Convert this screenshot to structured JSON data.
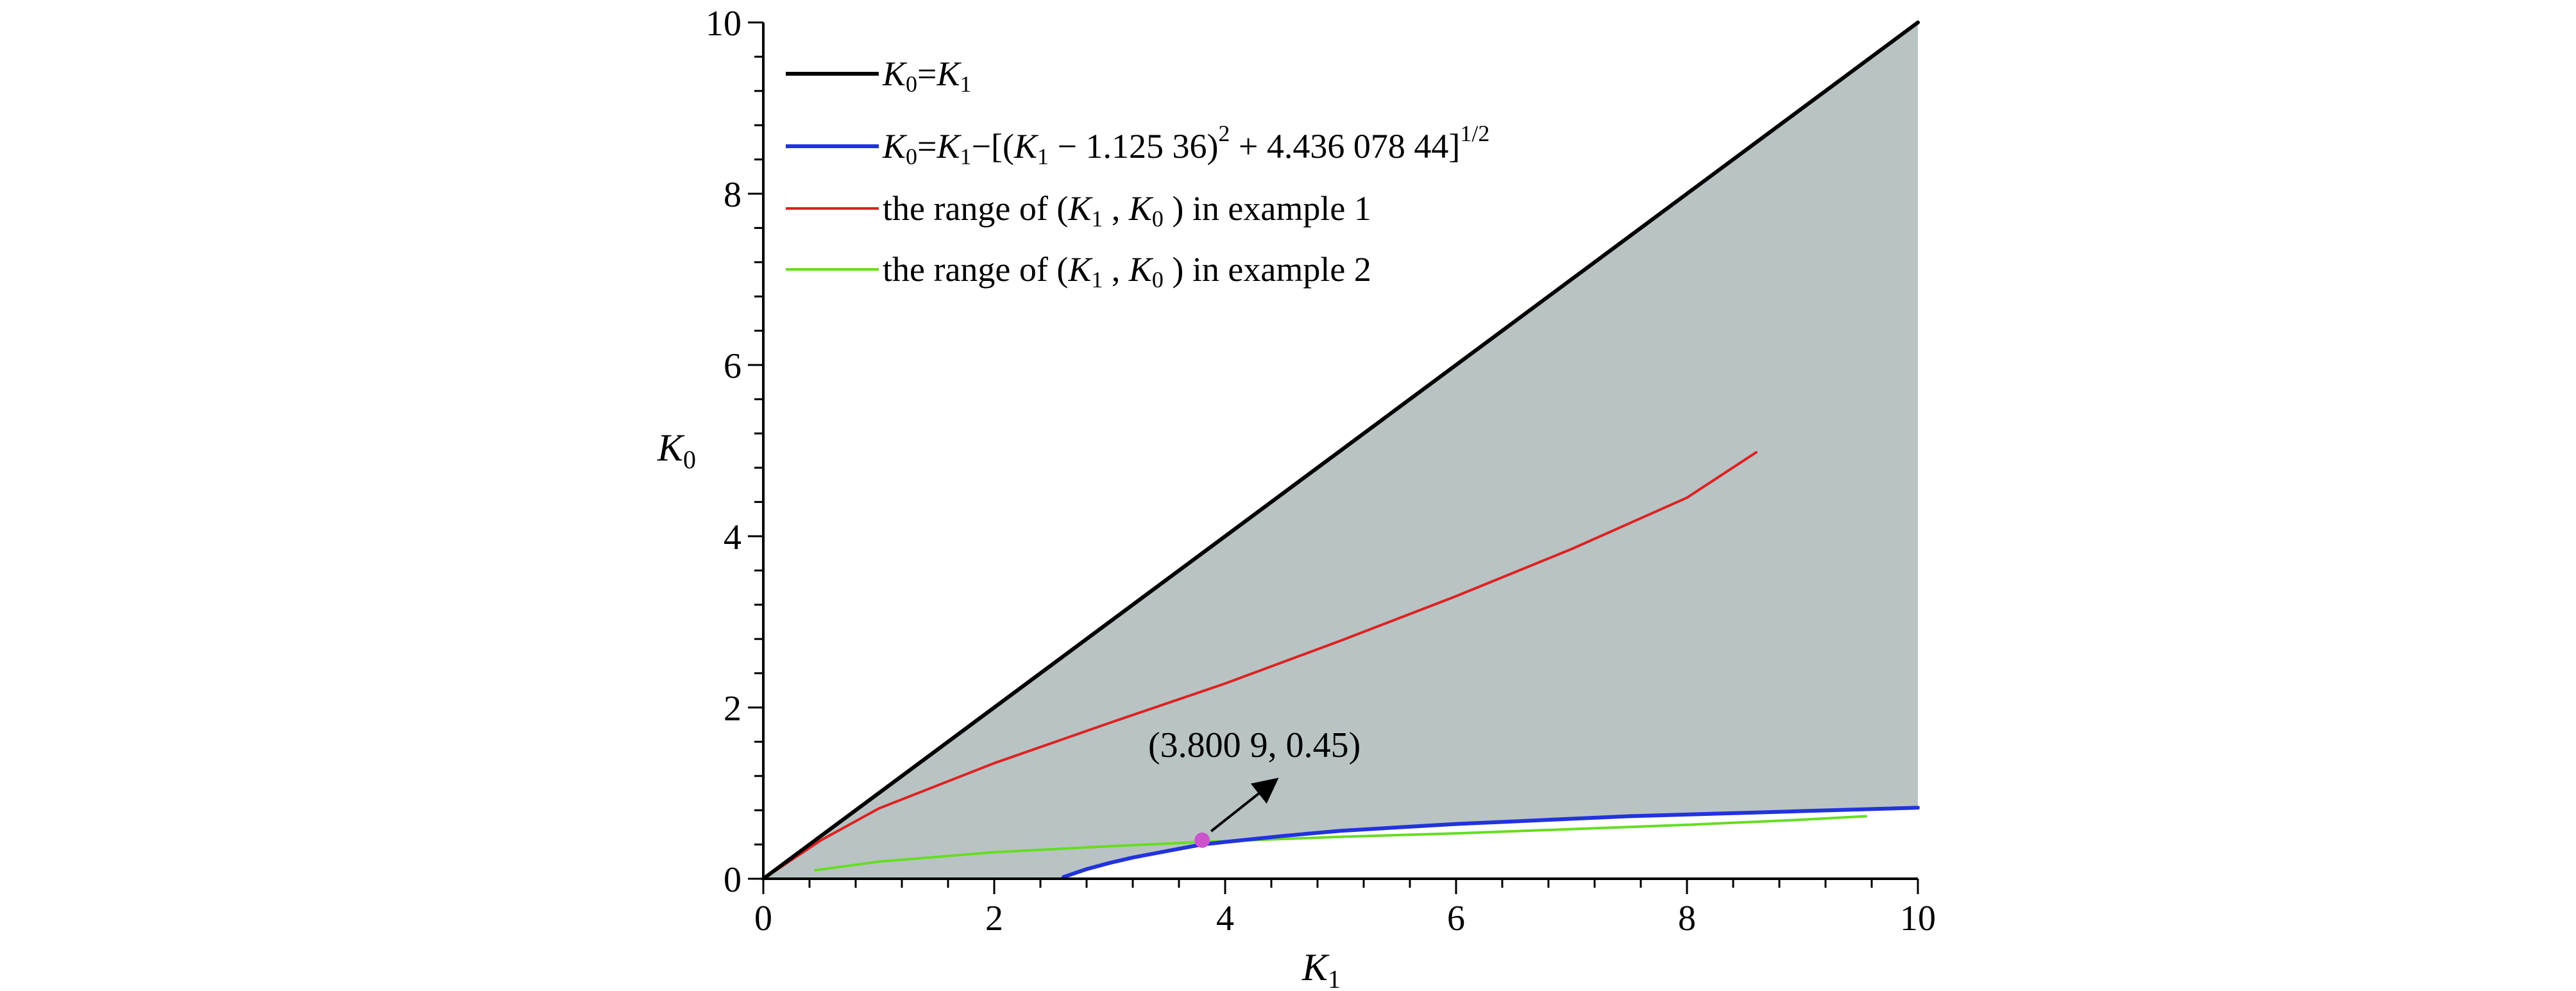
{
  "chart_data": {
    "type": "line",
    "xlabel": "K",
    "xlabel_sub": "1",
    "ylabel": "K",
    "ylabel_sub": "0",
    "xlim": [
      0,
      10
    ],
    "ylim": [
      0,
      10
    ],
    "x_major_ticks": [
      0,
      2,
      4,
      6,
      8,
      10
    ],
    "y_major_ticks": [
      0,
      2,
      4,
      6,
      8,
      10
    ],
    "x_tick_labels": [
      "0",
      "2",
      "4",
      "6",
      "8",
      "10"
    ],
    "y_tick_labels": [
      "0",
      "2",
      "4",
      "6",
      "8",
      "10"
    ],
    "minor_tick_step": 0.4,
    "grid": false,
    "legend_position": "top-left",
    "shaded_region": {
      "color": "#b9c3c4",
      "description_bounds": [
        "upper: K0 = K1",
        "lower: blue boundary curve (or 0)"
      ]
    },
    "legend": [
      {
        "series_ref": "k0_eq_k1",
        "color": "#000000",
        "parts": [
          {
            "t": "K",
            "i": true
          },
          {
            "t": "0",
            "sub": true
          },
          {
            "t": "=",
            "i": false
          },
          {
            "t": "K",
            "i": true
          },
          {
            "t": "1",
            "sub": true
          }
        ]
      },
      {
        "series_ref": "boundary",
        "color": "#2233dd",
        "parts": [
          {
            "t": "K",
            "i": true
          },
          {
            "t": "0",
            "sub": true
          },
          {
            "t": "=",
            "i": false
          },
          {
            "t": "K",
            "i": true
          },
          {
            "t": "1",
            "sub": true
          },
          {
            "t": "−[(",
            "i": false
          },
          {
            "t": "K",
            "i": true
          },
          {
            "t": "1",
            "sub": true
          },
          {
            "t": " − 1.125 36)",
            "i": false
          },
          {
            "t": "2",
            "sup": true
          },
          {
            "t": " + 4.436 078 44]",
            "i": false
          },
          {
            "t": "1/2",
            "sup": true
          }
        ]
      },
      {
        "series_ref": "example1",
        "color": "#dd2222",
        "parts": [
          {
            "t": "the range of (",
            "i": false
          },
          {
            "t": "K",
            "i": true
          },
          {
            "t": "1",
            "sub": true
          },
          {
            "t": " , ",
            "i": false
          },
          {
            "t": "K",
            "i": true
          },
          {
            "t": "0",
            "sub": true
          },
          {
            "t": " ) in example 1",
            "i": false
          }
        ]
      },
      {
        "series_ref": "example2",
        "color": "#66dd22",
        "parts": [
          {
            "t": "the range of (",
            "i": false
          },
          {
            "t": "K",
            "i": true
          },
          {
            "t": "1",
            "sub": true
          },
          {
            "t": " , ",
            "i": false
          },
          {
            "t": "K",
            "i": true
          },
          {
            "t": "0",
            "sub": true
          },
          {
            "t": " ) in example 2",
            "i": false
          }
        ]
      }
    ],
    "series": [
      {
        "id": "k0_eq_k1",
        "color": "#000000",
        "x": [
          0,
          10
        ],
        "y": [
          0,
          10
        ]
      },
      {
        "id": "boundary",
        "color": "#2233dd",
        "x": [
          2.6,
          2.8,
          3.0,
          3.2,
          3.5,
          3.8,
          4.0,
          4.5,
          5.0,
          5.5,
          6.0,
          6.5,
          7.0,
          7.5,
          8.0,
          8.5,
          9.0,
          9.5,
          10.0
        ],
        "y": [
          0.02,
          0.112,
          0.185,
          0.248,
          0.324,
          0.4,
          0.43,
          0.5,
          0.56,
          0.6,
          0.64,
          0.67,
          0.7,
          0.73,
          0.75,
          0.77,
          0.79,
          0.81,
          0.83
        ]
      },
      {
        "id": "example1",
        "color": "#dd2222",
        "x": [
          0,
          0.5,
          1,
          2,
          3,
          4,
          5,
          6,
          7,
          8,
          8.6
        ],
        "y": [
          0,
          0.45,
          0.82,
          1.35,
          1.82,
          2.28,
          2.78,
          3.3,
          3.85,
          4.45,
          4.98
        ]
      },
      {
        "id": "example2",
        "color": "#66dd22",
        "x": [
          0.45,
          1,
          2,
          3,
          3.8,
          5,
          6,
          7,
          8,
          9,
          9.55
        ],
        "y": [
          0.1,
          0.2,
          0.31,
          0.38,
          0.43,
          0.49,
          0.53,
          0.58,
          0.63,
          0.69,
          0.73
        ]
      }
    ],
    "annotation": {
      "text": "(3.800 9, 0.45)",
      "point": {
        "x": 3.8009,
        "y": 0.45,
        "color": "#cc55cc"
      }
    }
  }
}
